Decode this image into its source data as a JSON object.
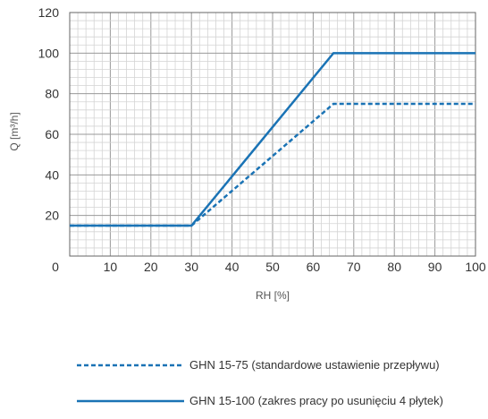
{
  "chart_data": {
    "type": "line",
    "xlabel": "RH [%]",
    "ylabel": "Q [m³/h]",
    "xlim": [
      0,
      100
    ],
    "ylim": [
      0,
      120
    ],
    "x_ticks": [
      0,
      10,
      20,
      30,
      40,
      50,
      60,
      70,
      80,
      90,
      100
    ],
    "y_ticks": [
      20,
      40,
      60,
      80,
      100,
      120
    ],
    "grid": true,
    "legend_position": "bottom",
    "series": [
      {
        "name": "GHN 15-75 (standardowe ustawienie przepływu)",
        "style": "dashed",
        "color": "#1a73b5",
        "x": [
          0,
          30,
          65,
          100
        ],
        "y": [
          15,
          15,
          75,
          75
        ]
      },
      {
        "name": "GHN 15-100 (zakres pracy po usunięciu 4 płytek)",
        "style": "solid",
        "color": "#1a73b5",
        "x": [
          0,
          30,
          65,
          100
        ],
        "y": [
          15,
          15,
          100,
          100
        ]
      }
    ]
  }
}
